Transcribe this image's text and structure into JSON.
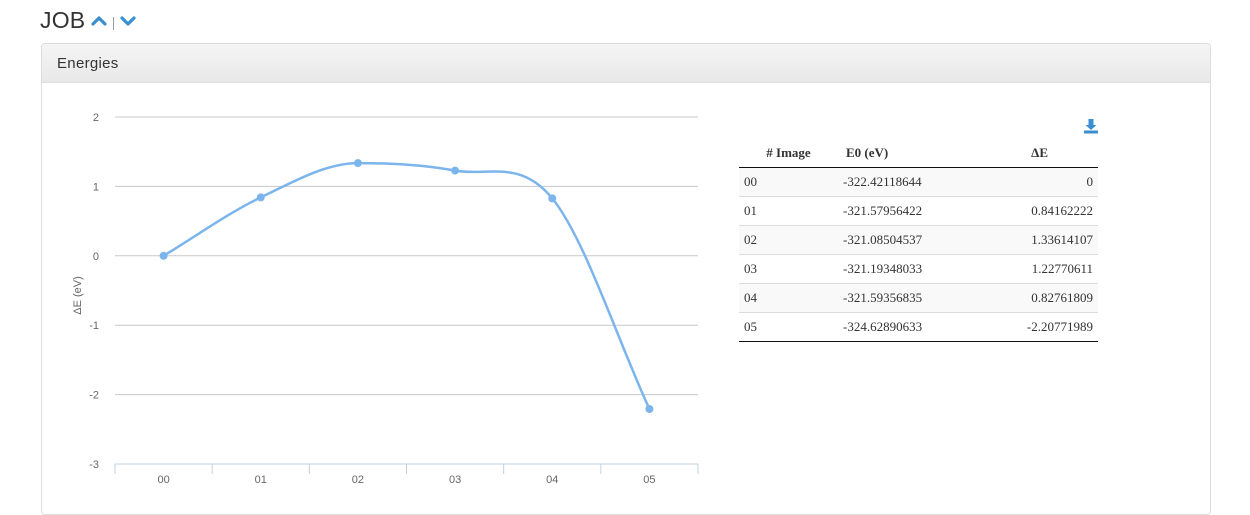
{
  "header": {
    "title": "JOB",
    "icons": [
      "chevron-up-icon",
      "chevron-down-icon"
    ],
    "accent_color": "#3a8fd0"
  },
  "panel": {
    "title": "Energies"
  },
  "chart_data": {
    "type": "line",
    "categories": [
      "00",
      "01",
      "02",
      "03",
      "04",
      "05"
    ],
    "series": [
      {
        "values": [
          0,
          0.84162222,
          1.33614107,
          1.22770611,
          0.82761809,
          -2.20771989
        ]
      }
    ],
    "ylabel": "ΔE (eV)",
    "xlabel": "",
    "ylim": [
      -3,
      2
    ],
    "yticks": [
      "-3",
      "-2",
      "-1",
      "0",
      "1",
      "2"
    ],
    "grid": true,
    "smooth": true,
    "line_color": "#7cb5ec"
  },
  "table": {
    "headers": [
      "# Image",
      "E0 (eV)",
      "ΔE"
    ],
    "rows": [
      [
        "00",
        "-322.42118644",
        "0"
      ],
      [
        "01",
        "-321.57956422",
        "0.84162222"
      ],
      [
        "02",
        "-321.08504537",
        "1.33614107"
      ],
      [
        "03",
        "-321.19348033",
        "1.22770611"
      ],
      [
        "04",
        "-321.59356835",
        "0.82761809"
      ],
      [
        "05",
        "-324.62890633",
        "-2.20771989"
      ]
    ]
  },
  "download": {
    "icon": "download-icon"
  }
}
